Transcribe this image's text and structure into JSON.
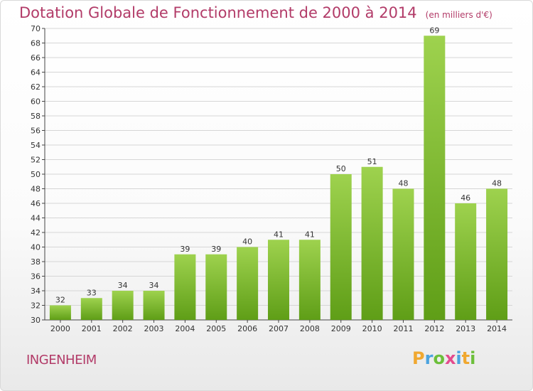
{
  "title": "Dotation Globale de Fonctionnement de 2000 à 2014",
  "unit": "(en milliers d'€)",
  "commune": "INGENHEIM",
  "logo": {
    "letters": [
      "P",
      "r",
      "o",
      "x",
      "i",
      "t",
      "i"
    ],
    "colors": [
      "#f0a830",
      "#4aa3df",
      "#6cbf3a",
      "#e44b8d",
      "#4aa3df",
      "#f0a830",
      "#6cbf3a"
    ]
  },
  "colors": {
    "title": "#b23b68",
    "bar_light": "#9ed24e",
    "bar_dark": "#5f9e17",
    "grid": "#d6d6d6"
  },
  "chart_data": {
    "type": "bar",
    "title": "Dotation Globale de Fonctionnement de 2000 à 2014",
    "subtitle": "(en milliers d'€)",
    "categories": [
      "2000",
      "2001",
      "2002",
      "2003",
      "2004",
      "2005",
      "2006",
      "2007",
      "2008",
      "2009",
      "2010",
      "2011",
      "2012",
      "2013",
      "2014"
    ],
    "values": [
      32,
      33,
      34,
      34,
      39,
      39,
      40,
      41,
      41,
      50,
      51,
      48,
      69,
      46,
      48
    ],
    "ylim": [
      30,
      70
    ],
    "yticks": [
      30,
      32,
      34,
      36,
      38,
      40,
      42,
      44,
      46,
      48,
      50,
      52,
      54,
      56,
      58,
      60,
      62,
      64,
      66,
      68,
      70
    ],
    "grid": true,
    "data_labels": true
  }
}
